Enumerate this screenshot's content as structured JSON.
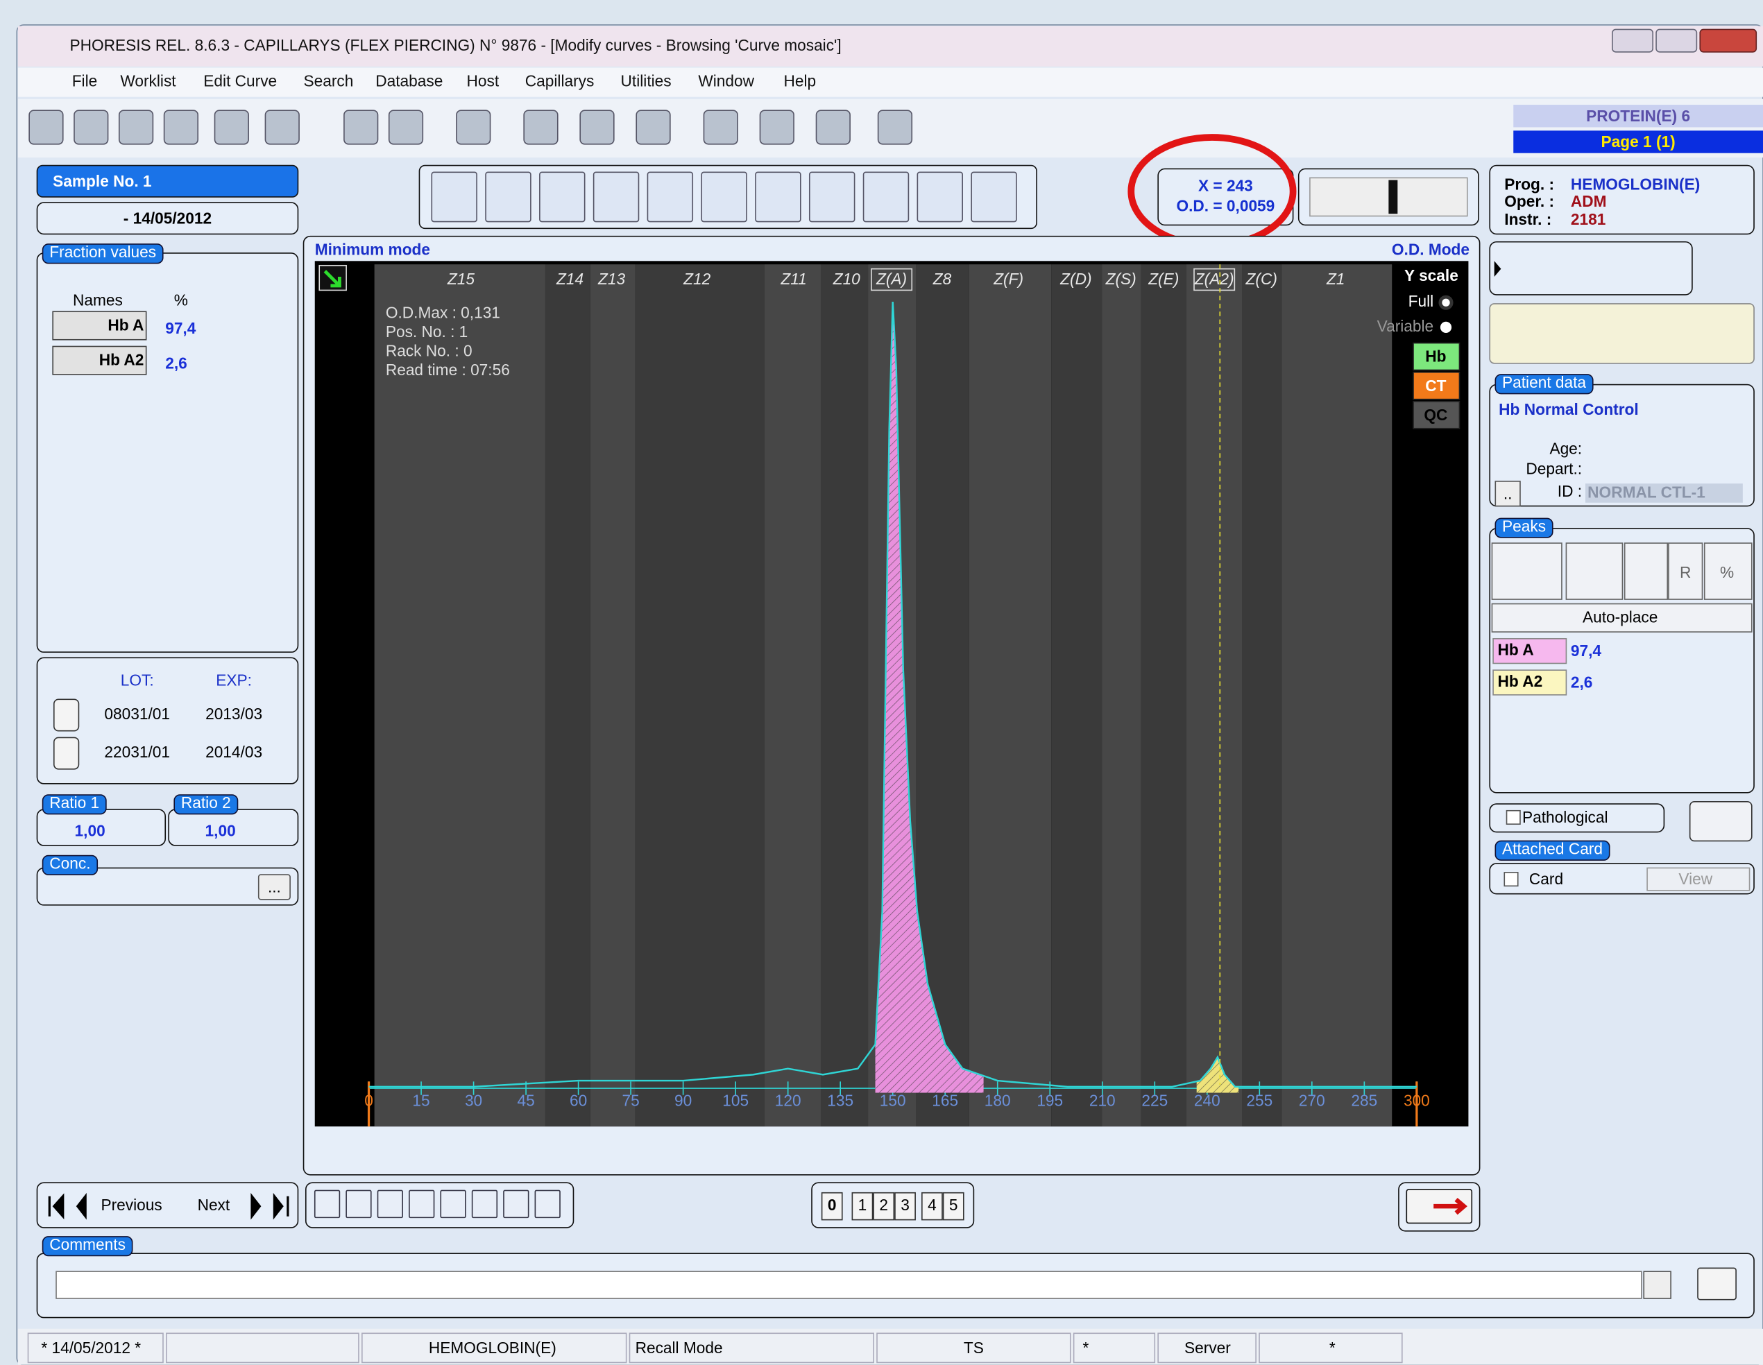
{
  "window": {
    "title": "PHORESIS REL. 8.6.3 - CAPILLARYS (FLEX PIERCING) N° 9876 - [Modify curves - Browsing 'Curve mosaic']"
  },
  "menu": [
    "File",
    "Worklist",
    "Edit Curve",
    "Search",
    "Database",
    "Host",
    "Capillarys",
    "Utilities",
    "Window",
    "Help"
  ],
  "badge": {
    "program": "PROTEIN(E) 6",
    "page": "Page 1 (1)"
  },
  "sample": {
    "label": "Sample No.  1",
    "date": "- 14/05/2012"
  },
  "cursor": {
    "x": "X = 243",
    "od": "O.D. = 0,0059"
  },
  "info": {
    "prog_label": "Prog. :",
    "prog": "HEMOGLOBIN(E)",
    "oper_label": "Oper. :",
    "oper": "ADM",
    "instr_label": "Instr. :",
    "instr": "2181"
  },
  "fractions": {
    "title": "Fraction values",
    "names_header": "Names",
    "pct_header": "%",
    "rows": [
      [
        "Hb A",
        "97,4"
      ],
      [
        "Hb A2",
        "2,6"
      ]
    ]
  },
  "lots": {
    "lot_header": "LOT:",
    "exp_header": "EXP:",
    "rows": [
      [
        "08031/01",
        "2013/03"
      ],
      [
        "22031/01",
        "2014/03"
      ]
    ]
  },
  "ratio1": {
    "title": "Ratio 1",
    "value": "1,00"
  },
  "ratio2": {
    "title": "Ratio 2",
    "value": "1,00"
  },
  "conc": {
    "title": "Conc.",
    "button": "..."
  },
  "nav": {
    "previous": "Previous",
    "next": "Next"
  },
  "pages": [
    "0",
    "1",
    "2",
    "3",
    "4",
    "5"
  ],
  "comments": {
    "title": "Comments"
  },
  "status": [
    "* 14/05/2012 *",
    "HEMOGLOBIN(E)",
    "Recall Mode",
    "TS",
    "*",
    "Server",
    "*"
  ],
  "patient": {
    "title": "Patient data",
    "name": "Hb Normal Control",
    "age": "Age:",
    "depart": "Depart.:",
    "id_label": "ID :",
    "id": "NORMAL CTL-1",
    "button": ".."
  },
  "peaks": {
    "title": "Peaks",
    "auto": "Auto-place",
    "r": "R",
    "pct": "%",
    "rows": [
      [
        "Hb A",
        "97,4"
      ],
      [
        "Hb A2",
        "2,6"
      ]
    ]
  },
  "pathological": "Pathological",
  "attached": {
    "title": "Attached Card",
    "card": "Card",
    "view": "View"
  },
  "plot": {
    "mode_left": "Minimum mode",
    "mode_right": "O.D. Mode",
    "yscale": "Y scale",
    "full": "Full",
    "variable": "Variable",
    "badges": [
      "Hb",
      "CT",
      "QC"
    ],
    "info": [
      "O.D.Max : 0,131",
      "Pos. No. : 1",
      "Rack No. : 0",
      "Read time : 07:56"
    ],
    "zones": [
      "Z15",
      "Z14",
      "Z13",
      "Z12",
      "Z11",
      "Z10",
      "Z(A)",
      "Z8",
      "Z(F)",
      "Z(D)",
      "Z(S)",
      "Z(E)",
      "Z(A2)",
      "Z(C)",
      "Z1"
    ]
  },
  "chart_data": {
    "type": "line",
    "color": "#2fd6d6",
    "x": [
      0,
      10,
      30,
      60,
      90,
      110,
      120,
      130,
      140,
      145,
      147,
      148,
      149,
      150,
      151,
      152,
      153,
      155,
      157,
      160,
      165,
      170,
      180,
      200,
      230,
      238,
      241,
      243,
      245,
      248,
      270,
      300
    ],
    "values": [
      0.001,
      0.001,
      0.001,
      0.002,
      0.002,
      0.003,
      0.004,
      0.003,
      0.004,
      0.008,
      0.03,
      0.07,
      0.11,
      0.131,
      0.12,
      0.095,
      0.07,
      0.045,
      0.03,
      0.018,
      0.008,
      0.004,
      0.002,
      0.001,
      0.001,
      0.002,
      0.004,
      0.0059,
      0.003,
      0.001,
      0.001,
      0.001
    ],
    "xlim": [
      0,
      300
    ],
    "ylim": [
      0,
      0.137
    ],
    "xticks": [
      0,
      15,
      30,
      45,
      60,
      75,
      90,
      105,
      120,
      135,
      150,
      165,
      180,
      195,
      210,
      225,
      240,
      255,
      270,
      285,
      300
    ],
    "fills": [
      {
        "from": 145,
        "to": 176,
        "color": "#e890dc"
      },
      {
        "from": 237,
        "to": 249,
        "color": "#eee27a"
      }
    ]
  }
}
